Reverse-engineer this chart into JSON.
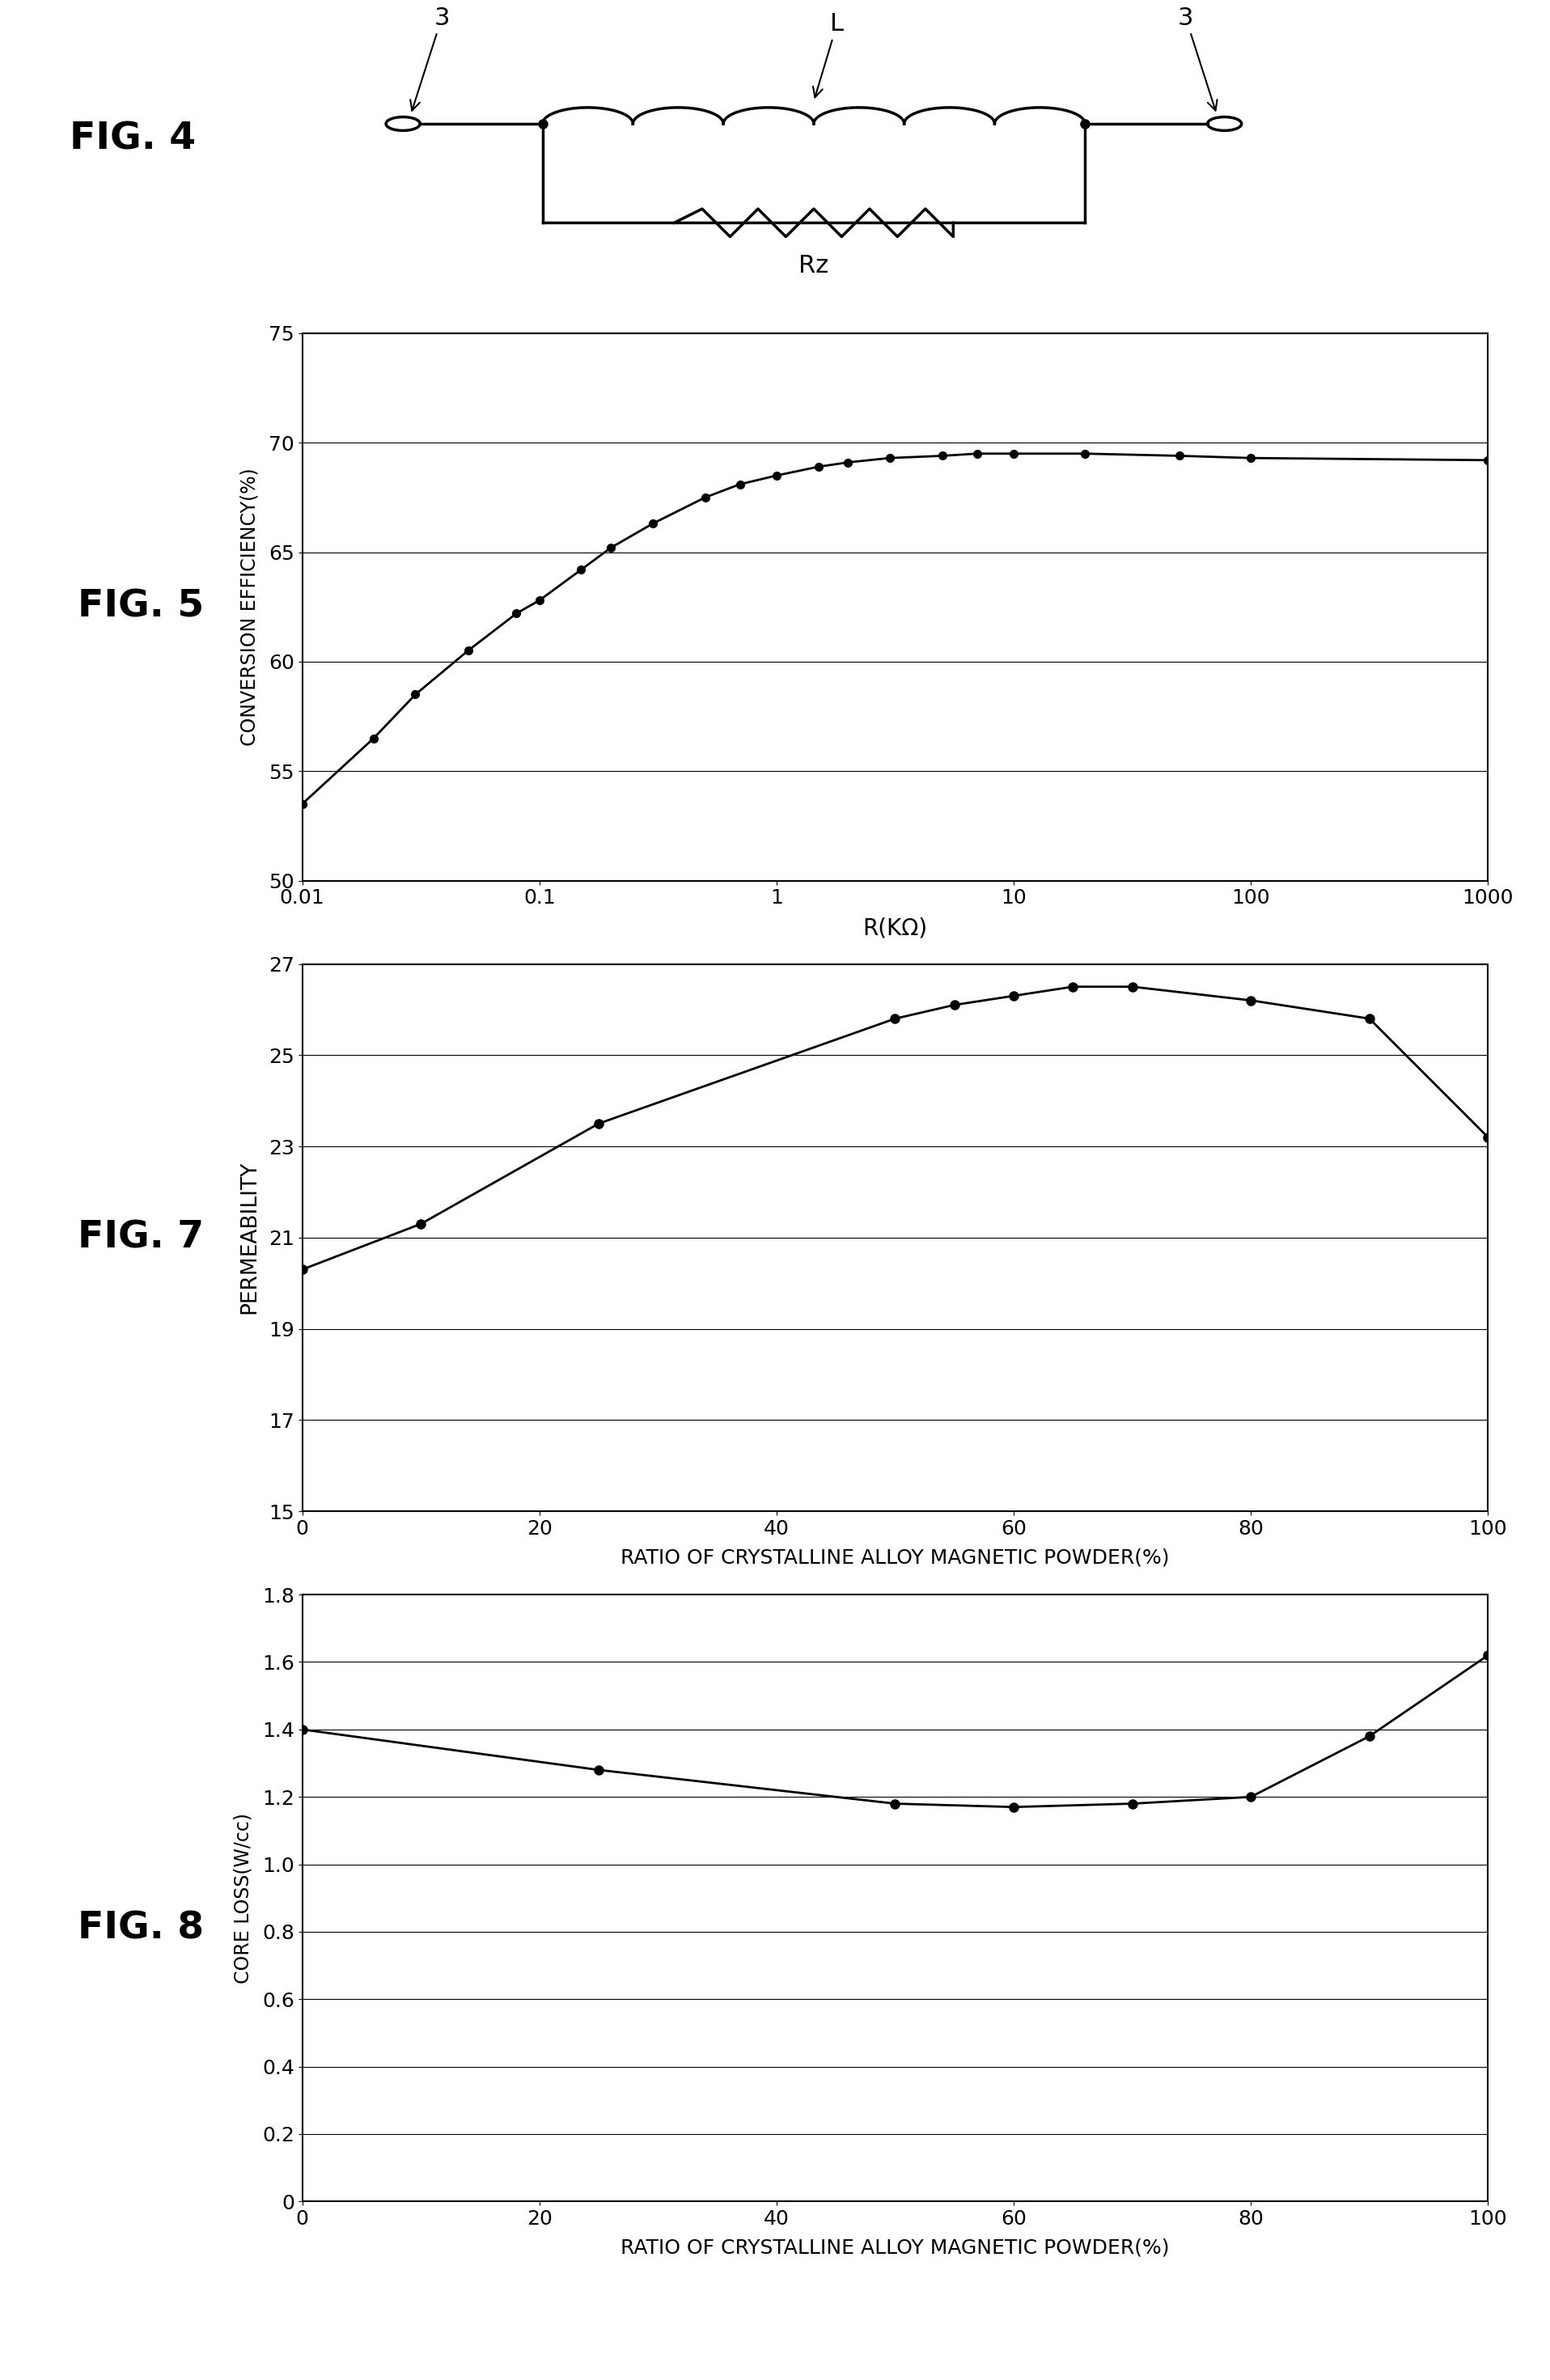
{
  "fig5_x": [
    0.01,
    0.02,
    0.03,
    0.05,
    0.08,
    0.1,
    0.15,
    0.2,
    0.3,
    0.5,
    0.7,
    1.0,
    1.5,
    2.0,
    3.0,
    5.0,
    7.0,
    10.0,
    20.0,
    50.0,
    100.0,
    1000.0
  ],
  "fig5_y": [
    53.5,
    56.5,
    58.5,
    60.5,
    62.2,
    62.8,
    64.2,
    65.2,
    66.3,
    67.5,
    68.1,
    68.5,
    68.9,
    69.1,
    69.3,
    69.4,
    69.5,
    69.5,
    69.5,
    69.4,
    69.3,
    69.2
  ],
  "fig5_ylim": [
    50,
    75
  ],
  "fig5_yticks": [
    50,
    55,
    60,
    65,
    70,
    75
  ],
  "fig5_ylabel": "CONVERSION EFFICIENCY(%)",
  "fig5_xlabel": "R(KΩ)",
  "fig7_x": [
    0,
    10,
    25,
    50,
    55,
    60,
    65,
    70,
    80,
    90,
    100
  ],
  "fig7_y": [
    20.3,
    21.3,
    23.5,
    25.8,
    26.1,
    26.3,
    26.5,
    26.5,
    26.2,
    25.8,
    23.2
  ],
  "fig7_ylim": [
    15,
    27
  ],
  "fig7_yticks": [
    15,
    17,
    19,
    21,
    23,
    25,
    27
  ],
  "fig7_ylabel": "PERMEABILITY",
  "fig7_xlabel": "RATIO OF CRYSTALLINE ALLOY MAGNETIC POWDER(%)",
  "fig8_x": [
    0,
    25,
    50,
    60,
    70,
    80,
    90,
    100
  ],
  "fig8_y": [
    1.4,
    1.28,
    1.18,
    1.17,
    1.18,
    1.2,
    1.38,
    1.62
  ],
  "fig8_ylim": [
    0,
    1.8
  ],
  "fig8_yticks": [
    0,
    0.2,
    0.4,
    0.6,
    0.8,
    1.0,
    1.2,
    1.4,
    1.6,
    1.8
  ],
  "fig8_ylabel": "CORE LOSS(W/cc)",
  "fig8_xlabel": "RATIO OF CRYSTALLINE ALLOY MAGNETIC POWDER(%)",
  "bg_color": "#ffffff",
  "line_color": "#000000",
  "dot_color": "#000000"
}
